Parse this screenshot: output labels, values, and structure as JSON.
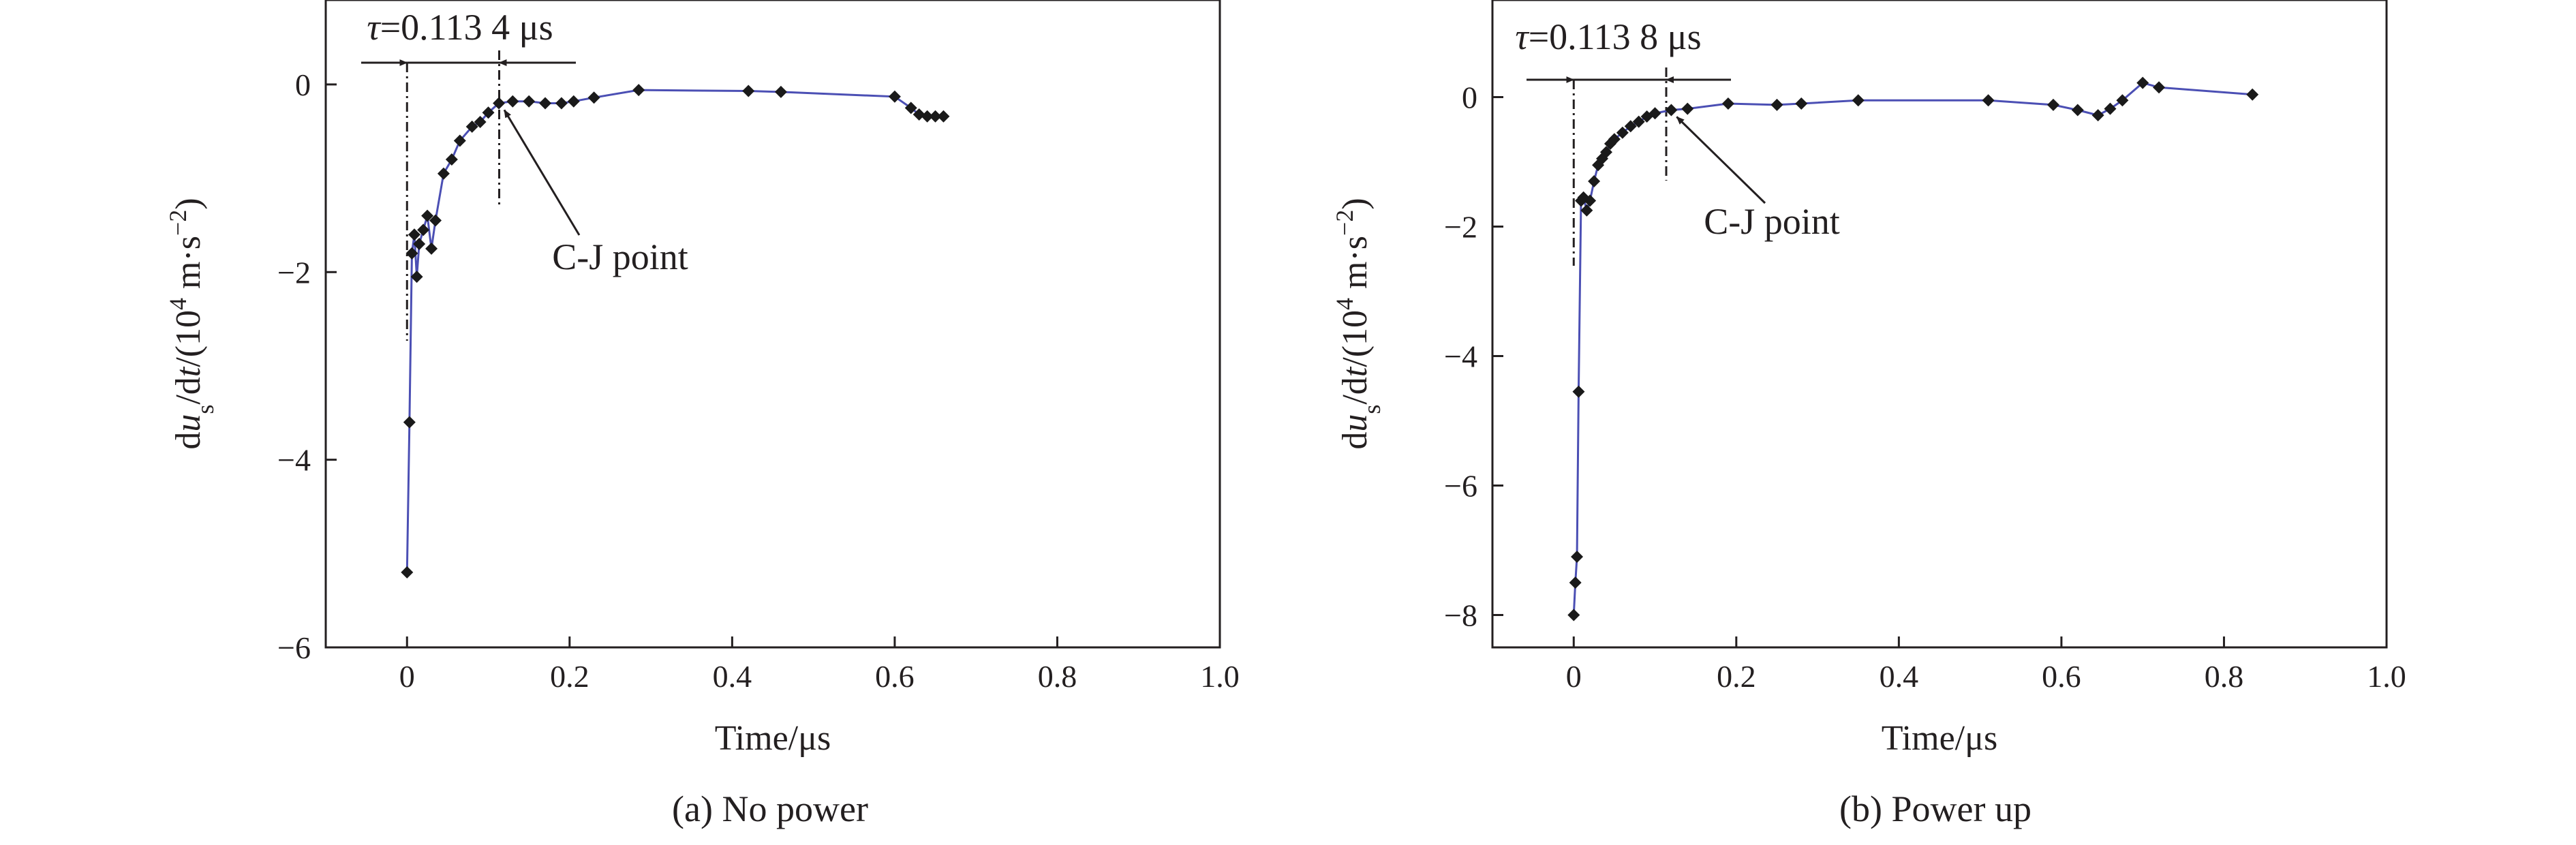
{
  "chart_data": [
    {
      "type": "line",
      "caption": "(a) No power",
      "xlabel": "Time/μs",
      "ylabel": {
        "prefix": "du",
        "sub": "s",
        "mid": "/dt/(10",
        "sup": "4",
        "unit": " m·s",
        "sup2": "−2",
        "close": ")"
      },
      "xlim": [
        -0.1,
        1.0
      ],
      "ylim": [
        -6,
        0.9
      ],
      "xticks": [
        0,
        0.2,
        0.4,
        0.6,
        0.8,
        1.0
      ],
      "xtick_labels": [
        "0",
        "0.2",
        "0.4",
        "0.6",
        "0.8",
        "1.0"
      ],
      "yticks": [
        -6,
        -4,
        -2,
        0
      ],
      "ytick_labels": [
        "−6",
        "−4",
        "−2",
        "0"
      ],
      "grid": false,
      "line_color": "#4b4fb4",
      "marker_color": "#1a1a1a",
      "tau_text": "τ=0.113 4 μs",
      "tau_start": 0,
      "tau_end": 0.1134,
      "annotation_text": "C-J point",
      "cj_point": [
        0.113,
        -0.2
      ],
      "series": [
        {
          "x": [
            0,
            0.003,
            0.006,
            0.009,
            0.012,
            0.015,
            0.02,
            0.025,
            0.03,
            0.035,
            0.045,
            0.055,
            0.065,
            0.08,
            0.09,
            0.1,
            0.113,
            0.13,
            0.15,
            0.17,
            0.19,
            0.205,
            0.23,
            0.285,
            0.42,
            0.46,
            0.6,
            0.62,
            0.63,
            0.64,
            0.65,
            0.66
          ],
          "y": [
            -5.2,
            -3.6,
            -1.8,
            -1.6,
            -2.05,
            -1.7,
            -1.55,
            -1.4,
            -1.75,
            -1.45,
            -0.95,
            -0.8,
            -0.6,
            -0.45,
            -0.4,
            -0.3,
            -0.2,
            -0.18,
            -0.18,
            -0.2,
            -0.2,
            -0.18,
            -0.14,
            -0.06,
            -0.07,
            -0.08,
            -0.13,
            -0.25,
            -0.32,
            -0.34,
            -0.34,
            -0.34
          ]
        }
      ]
    },
    {
      "type": "line",
      "caption": "(b) Power up",
      "xlabel": "Time/μs",
      "ylabel": {
        "prefix": "du",
        "sub": "s",
        "mid": "/dt/(10",
        "sup": "4",
        "unit": " m·s",
        "sup2": "−2",
        "close": ")"
      },
      "xlim": [
        -0.1,
        1.0
      ],
      "ylim": [
        -8.5,
        1.5
      ],
      "xticks": [
        0,
        0.2,
        0.4,
        0.6,
        0.8,
        1.0
      ],
      "xtick_labels": [
        "0",
        "0.2",
        "0.4",
        "0.6",
        "0.8",
        "1.0"
      ],
      "yticks": [
        -8,
        -6,
        -4,
        -2,
        0
      ],
      "ytick_labels": [
        "−8",
        "−6",
        "−4",
        "−2",
        "0"
      ],
      "grid": false,
      "line_color": "#4b4fb4",
      "marker_color": "#1a1a1a",
      "tau_text": "τ=0.113 8 μs",
      "tau_start": 0,
      "tau_end": 0.1138,
      "annotation_text": "C-J point",
      "cj_point": [
        0.12,
        -0.2
      ],
      "series": [
        {
          "x": [
            0,
            0.002,
            0.004,
            0.006,
            0.009,
            0.012,
            0.016,
            0.02,
            0.025,
            0.03,
            0.035,
            0.04,
            0.045,
            0.05,
            0.06,
            0.07,
            0.08,
            0.09,
            0.1,
            0.12,
            0.14,
            0.19,
            0.25,
            0.28,
            0.35,
            0.51,
            0.59,
            0.62,
            0.645,
            0.66,
            0.675,
            0.7,
            0.72,
            0.835
          ],
          "y": [
            -8.0,
            -7.5,
            -7.1,
            -4.55,
            -1.6,
            -1.55,
            -1.75,
            -1.6,
            -1.3,
            -1.05,
            -0.95,
            -0.85,
            -0.72,
            -0.65,
            -0.55,
            -0.45,
            -0.38,
            -0.3,
            -0.25,
            -0.2,
            -0.18,
            -0.1,
            -0.12,
            -0.1,
            -0.05,
            -0.05,
            -0.12,
            -0.2,
            -0.28,
            -0.18,
            -0.05,
            0.22,
            0.15,
            0.04
          ]
        }
      ]
    }
  ]
}
